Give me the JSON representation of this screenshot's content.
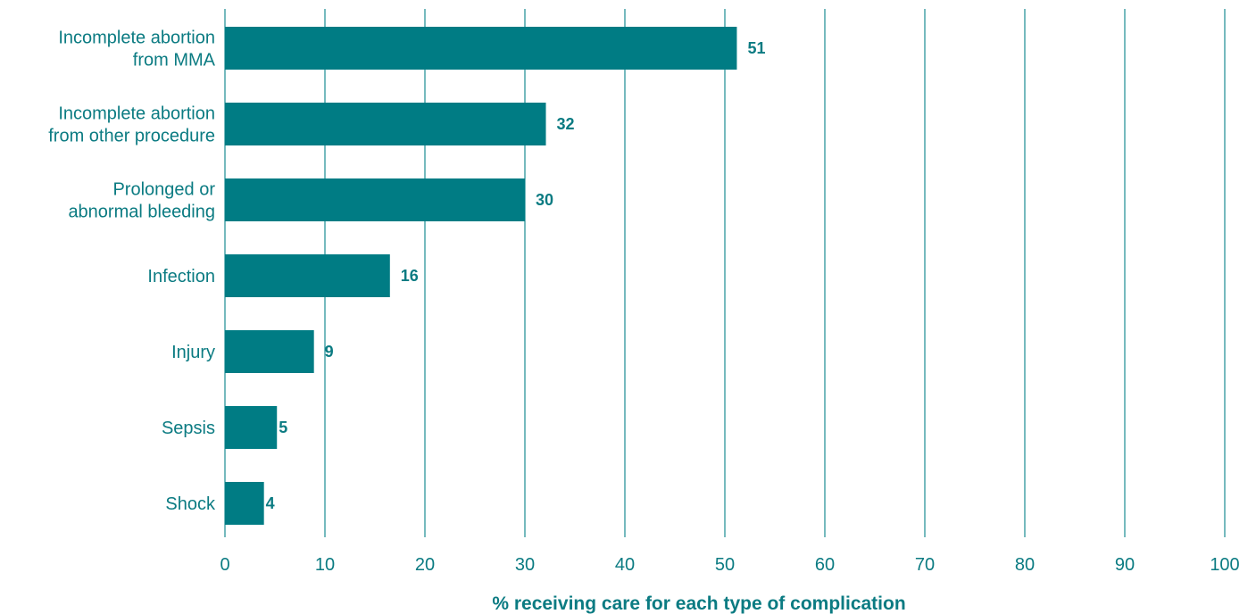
{
  "chart_data": {
    "type": "bar",
    "orientation": "horizontal",
    "categories": [
      [
        "Incomplete abortion",
        "from MMA"
      ],
      [
        "Incomplete abortion",
        "from other procedure"
      ],
      [
        "Prolonged or",
        "abnormal bleeding"
      ],
      [
        "Infection"
      ],
      [
        "Injury"
      ],
      [
        "Sepsis"
      ],
      [
        "Shock"
      ]
    ],
    "values": [
      51.2,
      32.1,
      30.0,
      16.5,
      8.9,
      5.2,
      3.9
    ],
    "value_labels": [
      "51",
      "32",
      "30",
      "16",
      "9",
      "5",
      "4"
    ],
    "xlabel": "% receiving care for each type of complication",
    "xlim": [
      0,
      100
    ],
    "xticks": [
      0,
      10,
      20,
      30,
      40,
      50,
      60,
      70,
      80,
      90,
      100
    ],
    "grid": "vertical",
    "colors": {
      "bar": "#007c84",
      "grid": "#1a8c92",
      "text": "#0b7b82"
    }
  }
}
